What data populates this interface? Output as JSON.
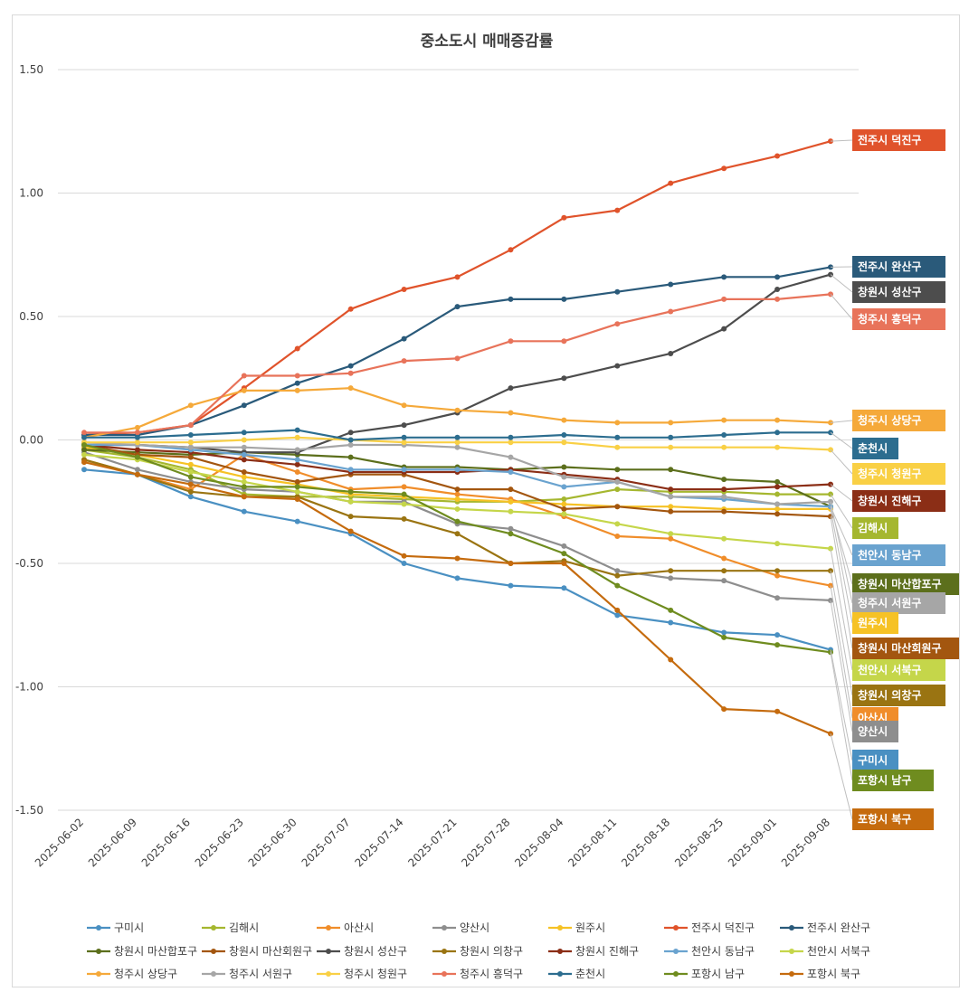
{
  "chart_data": {
    "type": "line",
    "title": "중소도시 매매증감률",
    "xlabel": "",
    "ylabel": "",
    "ylim": [
      -1.5,
      1.5
    ],
    "yticks": [
      "1.50",
      "1.00",
      "0.50",
      "0.00",
      "-0.50",
      "-1.00",
      "-1.50"
    ],
    "ytick_values": [
      1.5,
      1.0,
      0.5,
      0.0,
      -0.5,
      -1.0,
      -1.5
    ],
    "categories": [
      "2025-06-02",
      "2025-06-09",
      "2025-06-16",
      "2025-06-23",
      "2025-06-30",
      "2025-07-07",
      "2025-07-14",
      "2025-07-21",
      "2025-07-28",
      "2025-08-04",
      "2025-08-11",
      "2025-08-18",
      "2025-08-25",
      "2025-09-01",
      "2025-09-08"
    ],
    "legend_position": "bottom",
    "series": [
      {
        "name": "구미시",
        "color": "#4a90c2",
        "values": [
          -0.12,
          -0.14,
          -0.23,
          -0.29,
          -0.33,
          -0.38,
          -0.5,
          -0.56,
          -0.59,
          -0.6,
          -0.71,
          -0.74,
          -0.78,
          -0.79,
          -0.85
        ]
      },
      {
        "name": "김해시",
        "color": "#a5b72f",
        "values": [
          -0.04,
          -0.07,
          -0.12,
          -0.22,
          -0.23,
          -0.23,
          -0.24,
          -0.25,
          -0.25,
          -0.24,
          -0.2,
          -0.21,
          -0.21,
          -0.22,
          -0.22
        ]
      },
      {
        "name": "아산시",
        "color": "#f08d2a",
        "values": [
          -0.08,
          -0.14,
          -0.2,
          -0.06,
          -0.13,
          -0.2,
          -0.19,
          -0.22,
          -0.24,
          -0.31,
          -0.39,
          -0.4,
          -0.48,
          -0.55,
          -0.59
        ]
      },
      {
        "name": "양산시",
        "color": "#8e8e8e",
        "values": [
          -0.05,
          -0.12,
          -0.17,
          -0.2,
          -0.21,
          -0.25,
          -0.25,
          -0.34,
          -0.36,
          -0.43,
          -0.53,
          -0.56,
          -0.57,
          -0.64,
          -0.65
        ]
      },
      {
        "name": "원주시",
        "color": "#f6c225",
        "values": [
          -0.03,
          -0.06,
          -0.1,
          -0.15,
          -0.18,
          -0.22,
          -0.23,
          -0.24,
          -0.25,
          -0.26,
          -0.27,
          -0.27,
          -0.28,
          -0.28,
          -0.28
        ]
      },
      {
        "name": "전주시 덕진구",
        "color": "#e0532b",
        "values": [
          0.02,
          0.03,
          0.06,
          0.21,
          0.37,
          0.53,
          0.61,
          0.66,
          0.77,
          0.9,
          0.93,
          1.04,
          1.1,
          1.15,
          1.21
        ]
      },
      {
        "name": "전주시 완산구",
        "color": "#2a5a7a",
        "values": [
          0.02,
          0.02,
          0.06,
          0.14,
          0.23,
          0.3,
          0.41,
          0.54,
          0.57,
          0.57,
          0.6,
          0.63,
          0.66,
          0.66,
          0.7
        ]
      },
      {
        "name": "창원시 마산합포구",
        "color": "#5c6f1c",
        "values": [
          -0.04,
          -0.05,
          -0.06,
          -0.05,
          -0.06,
          -0.07,
          -0.11,
          -0.11,
          -0.12,
          -0.11,
          -0.12,
          -0.12,
          -0.16,
          -0.17,
          -0.27
        ]
      },
      {
        "name": "창원시 마산회원구",
        "color": "#a3560f",
        "values": [
          -0.02,
          -0.06,
          -0.07,
          -0.13,
          -0.17,
          -0.14,
          -0.14,
          -0.2,
          -0.2,
          -0.28,
          -0.27,
          -0.29,
          -0.29,
          -0.3,
          -0.31
        ]
      },
      {
        "name": "창원시 성산구",
        "color": "#4d4d4d",
        "values": [
          -0.02,
          -0.02,
          -0.03,
          -0.05,
          -0.05,
          0.03,
          0.06,
          0.11,
          0.21,
          0.25,
          0.3,
          0.35,
          0.45,
          0.61,
          0.67
        ]
      },
      {
        "name": "창원시 의창구",
        "color": "#9a7412",
        "values": [
          -0.08,
          -0.14,
          -0.21,
          -0.23,
          -0.23,
          -0.31,
          -0.32,
          -0.38,
          -0.5,
          -0.49,
          -0.55,
          -0.53,
          -0.53,
          -0.53,
          -0.53
        ]
      },
      {
        "name": "창원시 진해구",
        "color": "#8b2e16",
        "values": [
          -0.02,
          -0.04,
          -0.05,
          -0.08,
          -0.1,
          -0.13,
          -0.13,
          -0.13,
          -0.12,
          -0.14,
          -0.16,
          -0.2,
          -0.2,
          -0.19,
          -0.18
        ]
      },
      {
        "name": "천안시 동남구",
        "color": "#6aa3cf",
        "values": [
          -0.02,
          -0.02,
          -0.04,
          -0.06,
          -0.08,
          -0.12,
          -0.12,
          -0.12,
          -0.13,
          -0.19,
          -0.17,
          -0.23,
          -0.24,
          -0.26,
          -0.27
        ]
      },
      {
        "name": "천안시 서북구",
        "color": "#c5d64a",
        "values": [
          -0.06,
          -0.08,
          -0.13,
          -0.17,
          -0.21,
          -0.25,
          -0.26,
          -0.28,
          -0.29,
          -0.3,
          -0.34,
          -0.38,
          -0.4,
          -0.42,
          -0.44
        ]
      },
      {
        "name": "청주시 상당구",
        "color": "#f5a93a",
        "values": [
          0.01,
          0.05,
          0.14,
          0.2,
          0.2,
          0.21,
          0.14,
          0.12,
          0.11,
          0.08,
          0.07,
          0.07,
          0.08,
          0.08,
          0.07
        ]
      },
      {
        "name": "청주시 서원구",
        "color": "#a6a6a6",
        "values": [
          -0.01,
          -0.02,
          -0.03,
          -0.03,
          -0.04,
          -0.02,
          -0.02,
          -0.03,
          -0.07,
          -0.15,
          -0.17,
          -0.23,
          -0.23,
          -0.26,
          -0.25
        ]
      },
      {
        "name": "청주시 청원구",
        "color": "#f9d045",
        "values": [
          -0.01,
          -0.01,
          -0.01,
          0.0,
          0.01,
          0.0,
          -0.01,
          -0.01,
          -0.01,
          -0.01,
          -0.03,
          -0.03,
          -0.03,
          -0.03,
          -0.04
        ]
      },
      {
        "name": "청주시 흥덕구",
        "color": "#e8735a",
        "values": [
          0.03,
          0.03,
          0.06,
          0.26,
          0.26,
          0.27,
          0.32,
          0.33,
          0.4,
          0.4,
          0.47,
          0.52,
          0.57,
          0.57,
          0.59
        ]
      },
      {
        "name": "춘천시",
        "color": "#2c6d8f",
        "values": [
          0.01,
          0.01,
          0.02,
          0.03,
          0.04,
          0.0,
          0.01,
          0.01,
          0.01,
          0.02,
          0.01,
          0.01,
          0.02,
          0.03,
          0.03
        ]
      },
      {
        "name": "포항시 남구",
        "color": "#6f8c1f",
        "values": [
          -0.02,
          -0.07,
          -0.15,
          -0.19,
          -0.19,
          -0.21,
          -0.22,
          -0.33,
          -0.38,
          -0.46,
          -0.59,
          -0.69,
          -0.8,
          -0.83,
          -0.86
        ]
      },
      {
        "name": "포항시 북구",
        "color": "#c56b0e",
        "values": [
          -0.09,
          -0.14,
          -0.18,
          -0.23,
          -0.24,
          -0.37,
          -0.47,
          -0.48,
          -0.5,
          -0.5,
          -0.69,
          -0.89,
          -1.09,
          -1.1,
          -1.19
        ]
      }
    ],
    "end_labels": [
      {
        "name": "전주시 덕진구",
        "color": "#e0532b"
      },
      {
        "name": "전주시 완산구",
        "color": "#2a5a7a"
      },
      {
        "name": "창원시 성산구",
        "color": "#4d4d4d"
      },
      {
        "name": "청주시 흥덕구",
        "color": "#e8735a"
      },
      {
        "name": "청주시 상당구",
        "color": "#f5a93a"
      },
      {
        "name": "춘천시",
        "color": "#2c6d8f"
      },
      {
        "name": "청주시 청원구",
        "color": "#f9d045"
      },
      {
        "name": "창원시 진해구",
        "color": "#8b2e16"
      },
      {
        "name": "김해시",
        "color": "#a5b72f"
      },
      {
        "name": "천안시 동남구",
        "color": "#6aa3cf"
      },
      {
        "name": "창원시 마산합포구",
        "color": "#5c6f1c"
      },
      {
        "name": "청주시 서원구",
        "color": "#a6a6a6"
      },
      {
        "name": "원주시",
        "color": "#f6c225"
      },
      {
        "name": "창원시 마산회원구",
        "color": "#a3560f"
      },
      {
        "name": "천안시 서북구",
        "color": "#c5d64a"
      },
      {
        "name": "창원시 의창구",
        "color": "#9a7412"
      },
      {
        "name": "아산시",
        "color": "#f08d2a"
      },
      {
        "name": "양산시",
        "color": "#8e8e8e"
      },
      {
        "name": "구미시",
        "color": "#4a90c2"
      },
      {
        "name": "포항시 남구",
        "color": "#6f8c1f"
      },
      {
        "name": "포항시 북구",
        "color": "#c56b0e"
      }
    ]
  }
}
